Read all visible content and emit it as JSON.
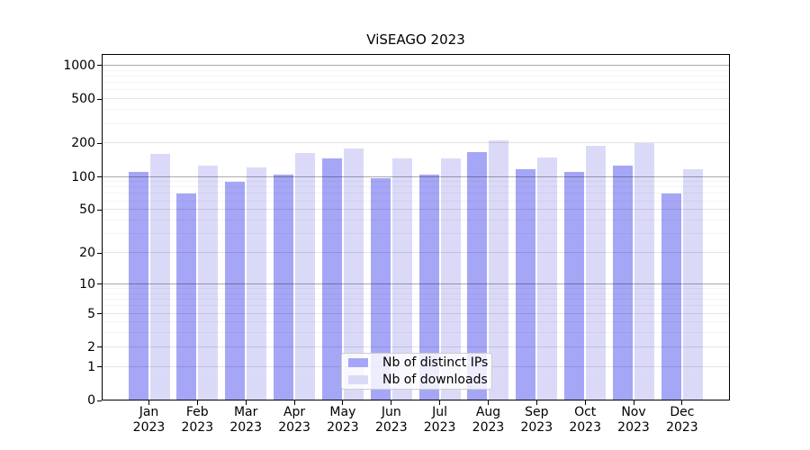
{
  "chart_data": {
    "type": "bar",
    "title": "ViSEAGO 2023",
    "x_categories": [
      "Jan 2023",
      "Feb 2023",
      "Mar 2023",
      "Apr 2023",
      "May 2023",
      "Jun 2023",
      "Jul 2023",
      "Aug 2023",
      "Sep 2023",
      "Oct 2023",
      "Nov 2023",
      "Dec 2023"
    ],
    "series": [
      {
        "name": "Nb of distinct IPs",
        "color": "#a6a6f6",
        "values": [
          110,
          70,
          91,
          104,
          148,
          97,
          105,
          166,
          117,
          111,
          126,
          71
        ]
      },
      {
        "name": "Nb of downloads",
        "color": "#dadaf8",
        "values": [
          162,
          126,
          122,
          164,
          182,
          146,
          146,
          214,
          150,
          192,
          203,
          118
        ]
      }
    ],
    "y_axis": {
      "scale": "log1p",
      "ticks": [
        0,
        1,
        2,
        5,
        10,
        20,
        50,
        100,
        200,
        500,
        1000
      ],
      "max": 1272
    },
    "grid": {
      "show": true,
      "emph_color": "rgba(0,0,0,0.33)",
      "major_color": "rgba(0,0,0,0.11)",
      "minor_color": "rgba(0,0,0,0.045)"
    },
    "legend": {
      "position": "inside-bottom-center"
    }
  }
}
